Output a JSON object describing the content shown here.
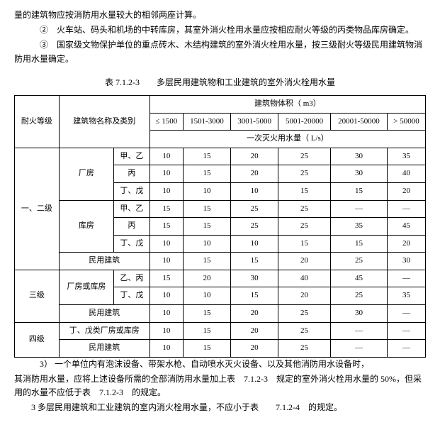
{
  "paragraphs": {
    "p1": "量的建筑物应按消防用水量较大的相邻两座计算。",
    "p2": "②　火车站、码头和机场的中转库房，其室外消火栓用水量应按相应耐火等级的丙类物品库房确定。",
    "p3": "③　国家级文物保护单位的重点砖木、木结构建筑的室外消火栓用水量，按三级耐火等级民用建筑物消防用水量确定。"
  },
  "table_title": "表 7.1.2-3　　多层民用建筑物和工业建筑的室外消火栓用水量",
  "table": {
    "headers": {
      "fire_grade": "耐火等级",
      "building_type": "建筑物名称及类别",
      "volume_header": "建筑物体积（ m3）",
      "vol_cols": [
        "≤ 1500",
        "1501-3000",
        "3001-5000",
        "5001-20000",
        "20001-50000",
        "> 50000"
      ],
      "flow_header": "一次灭火用水量（ L/s）"
    },
    "groups": [
      {
        "grade": "一、二级",
        "rows": [
          {
            "cat": "厂房",
            "sub": "甲、乙",
            "vals": [
              "10",
              "15",
              "20",
              "25",
              "30",
              "35"
            ]
          },
          {
            "cat": "",
            "sub": "丙",
            "vals": [
              "10",
              "15",
              "20",
              "25",
              "30",
              "40"
            ]
          },
          {
            "cat": "",
            "sub": "丁、戊",
            "vals": [
              "10",
              "10",
              "10",
              "15",
              "15",
              "20"
            ]
          },
          {
            "cat": "库房",
            "sub": "甲、乙",
            "vals": [
              "15",
              "15",
              "25",
              "25",
              "—",
              "—"
            ]
          },
          {
            "cat": "",
            "sub": "丙",
            "vals": [
              "15",
              "15",
              "25",
              "25",
              "35",
              "45"
            ]
          },
          {
            "cat": "",
            "sub": "丁、戊",
            "vals": [
              "10",
              "10",
              "10",
              "15",
              "15",
              "20"
            ]
          },
          {
            "cat": "民用建筑",
            "sub": "",
            "vals": [
              "10",
              "15",
              "15",
              "20",
              "25",
              "30"
            ]
          }
        ]
      },
      {
        "grade": "三级",
        "rows": [
          {
            "cat": "厂房或库房",
            "sub": "乙、丙",
            "vals": [
              "15",
              "20",
              "30",
              "40",
              "45",
              "—"
            ]
          },
          {
            "cat": "",
            "sub": "丁、戊",
            "vals": [
              "10",
              "10",
              "15",
              "20",
              "25",
              "35"
            ]
          },
          {
            "cat": "民用建筑",
            "sub": "",
            "vals": [
              "10",
              "15",
              "20",
              "25",
              "30",
              "—"
            ]
          }
        ]
      },
      {
        "grade": "四级",
        "rows": [
          {
            "cat": "丁、戊类厂房或库房",
            "sub": "",
            "vals": [
              "10",
              "15",
              "20",
              "25",
              "—",
              "—"
            ]
          },
          {
            "cat": "民用建筑",
            "sub": "",
            "vals": [
              "10",
              "15",
              "20",
              "25",
              "—",
              "—"
            ]
          }
        ]
      }
    ]
  },
  "notes": {
    "n1a": "3） 一个单位内有泡沫设备、带架水枪、自动喷水灭火设备、以及其他消防用水设备时，",
    "n1b": "其消防用水量，应将上述设备所需的全部消防用水量加上表　7.1.2-3　规定的室外消火栓用水量的 50%，但采用的水量不应低于表　7.1.2-3　的规定。",
    "n2": "3 多层民用建筑和工业建筑的室内消火栓用水量，不应小于表　　7.1.2-4　的规定。"
  }
}
